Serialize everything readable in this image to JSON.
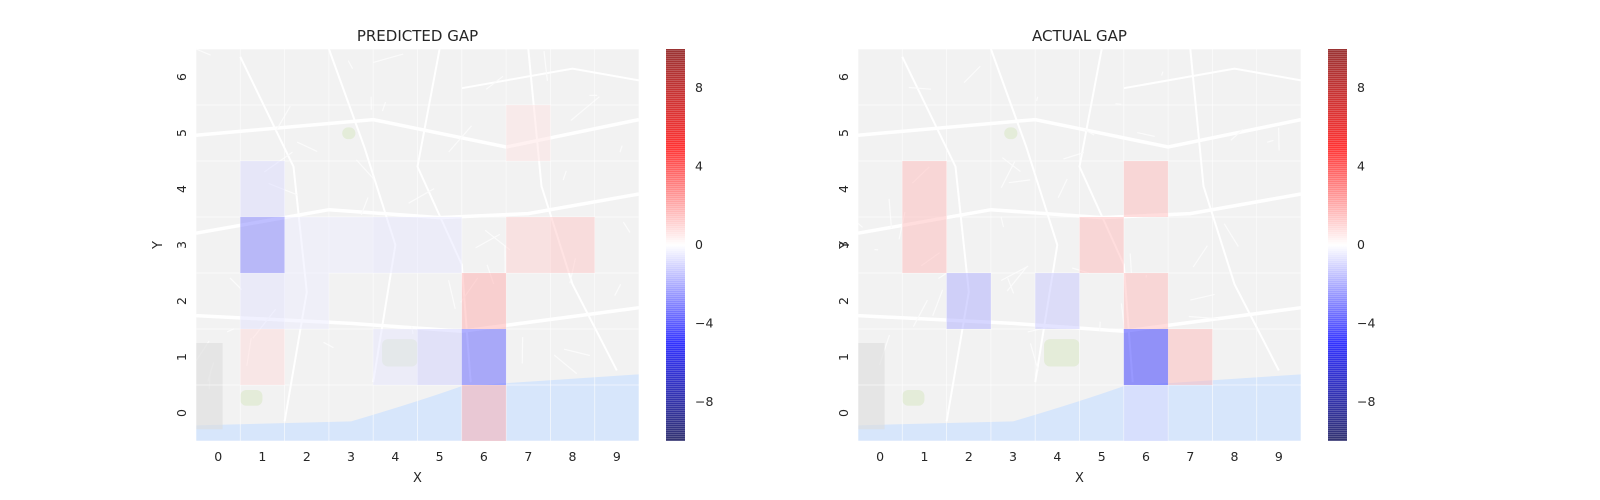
{
  "chart_data": [
    {
      "type": "heatmap",
      "title": "PREDICTED GAP",
      "xlabel": "X",
      "ylabel": "Y",
      "x_ticks": [
        "0",
        "1",
        "2",
        "3",
        "4",
        "5",
        "6",
        "7",
        "8",
        "9"
      ],
      "y_ticks": [
        "0",
        "1",
        "2",
        "3",
        "4",
        "5",
        "6"
      ],
      "xlim": [
        -0.5,
        9.5
      ],
      "ylim": [
        -0.5,
        6.5
      ],
      "colorbar": {
        "range": [
          -10,
          10
        ],
        "ticks": [
          "8",
          "4",
          "0",
          "−4",
          "−8"
        ],
        "tick_values": [
          8,
          4,
          0,
          -4,
          -8
        ]
      },
      "background": "street map of Porto",
      "cells": [
        {
          "x": 1,
          "y": 4,
          "value": -0.8
        },
        {
          "x": 1,
          "y": 3,
          "value": -2.8
        },
        {
          "x": 1,
          "y": 2,
          "value": -0.6
        },
        {
          "x": 1,
          "y": 1,
          "value": 0.8
        },
        {
          "x": 2,
          "y": 3,
          "value": -0.4
        },
        {
          "x": 2,
          "y": 2,
          "value": -0.4
        },
        {
          "x": 3,
          "y": 3,
          "value": -0.4
        },
        {
          "x": 4,
          "y": 3,
          "value": -0.5
        },
        {
          "x": 4,
          "y": 1,
          "value": -0.5
        },
        {
          "x": 5,
          "y": 3,
          "value": -0.5
        },
        {
          "x": 5,
          "y": 1,
          "value": -1.0
        },
        {
          "x": 6,
          "y": 2,
          "value": 1.8
        },
        {
          "x": 6,
          "y": 1,
          "value": -3.5
        },
        {
          "x": 6,
          "y": 0,
          "value": 1.8
        },
        {
          "x": 7,
          "y": 5,
          "value": 0.6
        },
        {
          "x": 7,
          "y": 3,
          "value": 1.0
        },
        {
          "x": 8,
          "y": 3,
          "value": 1.2
        }
      ]
    },
    {
      "type": "heatmap",
      "title": "ACTUAL GAP",
      "xlabel": "X",
      "ylabel": "Y",
      "x_ticks": [
        "0",
        "1",
        "2",
        "3",
        "4",
        "5",
        "6",
        "7",
        "8",
        "9"
      ],
      "y_ticks": [
        "0",
        "1",
        "2",
        "3",
        "4",
        "5",
        "6"
      ],
      "xlim": [
        -0.5,
        9.5
      ],
      "ylim": [
        -0.5,
        6.5
      ],
      "colorbar": {
        "range": [
          -10,
          10
        ],
        "ticks": [
          "8",
          "4",
          "0",
          "−4",
          "−8"
        ],
        "tick_values": [
          8,
          4,
          0,
          -4,
          -8
        ]
      },
      "background": "street map of Porto",
      "cells": [
        {
          "x": 1,
          "y": 4,
          "value": 1.5
        },
        {
          "x": 1,
          "y": 3,
          "value": 1.5
        },
        {
          "x": 2,
          "y": 2,
          "value": -1.8
        },
        {
          "x": 4,
          "y": 2,
          "value": -1.2
        },
        {
          "x": 5,
          "y": 3,
          "value": 1.5
        },
        {
          "x": 6,
          "y": 4,
          "value": 1.5
        },
        {
          "x": 6,
          "y": 2,
          "value": 1.5
        },
        {
          "x": 6,
          "y": 1,
          "value": -4.5
        },
        {
          "x": 6,
          "y": 0,
          "value": -0.8
        },
        {
          "x": 7,
          "y": 1,
          "value": 1.5
        }
      ]
    }
  ]
}
